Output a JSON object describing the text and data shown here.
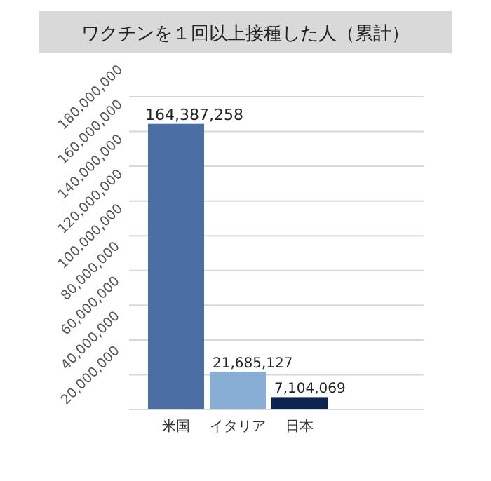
{
  "chart_data": {
    "type": "bar",
    "title": "ワクチンを１回以上接種した人（累計）",
    "categories": [
      "米国",
      "イタリア",
      "日本"
    ],
    "values": [
      164387258,
      21685127,
      7104069
    ],
    "value_labels": [
      "164,387,258",
      "21,685,127",
      "7,104,069"
    ],
    "colors": [
      "#4a6fa5",
      "#88aed6",
      "#0d2350"
    ],
    "ylim": [
      0,
      180000000
    ],
    "yticks": [
      {
        "value": 20000000,
        "label": "20,000,000"
      },
      {
        "value": 40000000,
        "label": "40,000,000"
      },
      {
        "value": 60000000,
        "label": "60,000,000"
      },
      {
        "value": 80000000,
        "label": "80,000,000"
      },
      {
        "value": 100000000,
        "label": "100,000,000"
      },
      {
        "value": 120000000,
        "label": "120,000,000"
      },
      {
        "value": 140000000,
        "label": "140,000,000"
      },
      {
        "value": 160000000,
        "label": "160,000,000"
      },
      {
        "value": 180000000,
        "label": "180,000,000"
      }
    ],
    "grid": "y"
  }
}
